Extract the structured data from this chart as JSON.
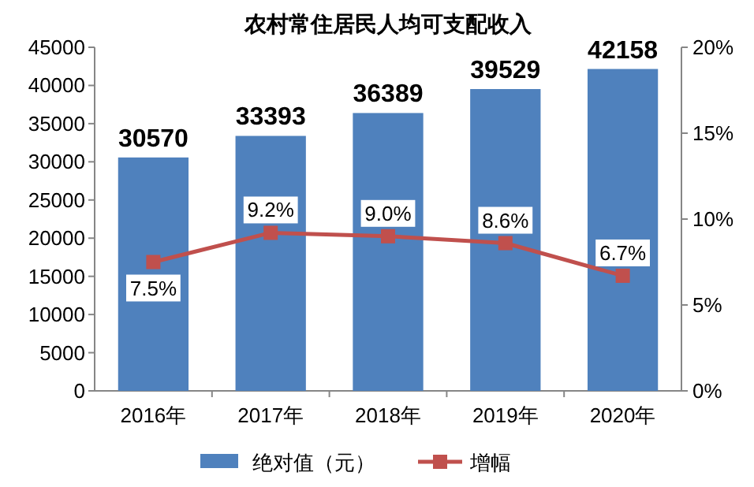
{
  "chart_data": {
    "type": "bar",
    "title": "农村常住居民人均可支配收入",
    "categories": [
      "2016年",
      "2017年",
      "2018年",
      "2019年",
      "2020年"
    ],
    "series": [
      {
        "name": "绝对值（元）",
        "color": "#4f81bd",
        "values": [
          30570,
          33393,
          36389,
          39529,
          42158
        ],
        "value_labels": [
          "30570",
          "33393",
          "36389",
          "39529",
          "42158"
        ]
      },
      {
        "name": "增幅",
        "type": "line",
        "axis": "y2",
        "color": "#c0504d",
        "values": [
          7.5,
          9.2,
          9.0,
          8.6,
          6.7
        ],
        "value_labels": [
          "7.5%",
          "9.2%",
          "9.0%",
          "8.6%",
          "6.7%"
        ]
      }
    ],
    "ylim": [
      0,
      45000
    ],
    "yticks": [
      0,
      5000,
      10000,
      15000,
      20000,
      25000,
      30000,
      35000,
      40000,
      45000
    ],
    "y2lim": [
      0,
      20
    ],
    "y2ticks": [
      {
        "value": 0,
        "label": "0%"
      },
      {
        "value": 5,
        "label": "5%"
      },
      {
        "value": 10,
        "label": "10%"
      },
      {
        "value": 15,
        "label": "15%"
      },
      {
        "value": 20,
        "label": "20%"
      }
    ],
    "marker": "square",
    "line_style": "solid",
    "grid": false,
    "legend": "bottom"
  }
}
